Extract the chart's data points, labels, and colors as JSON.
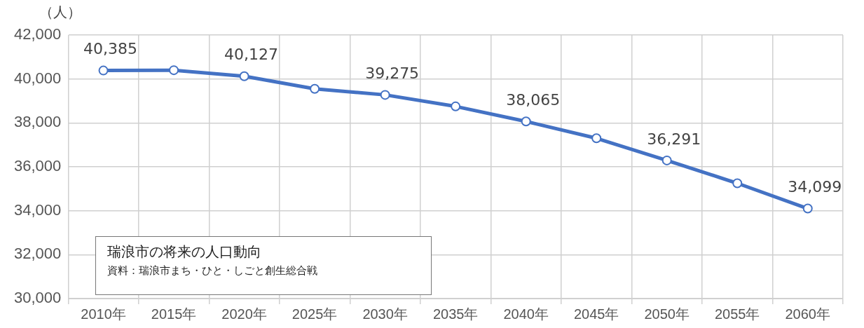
{
  "chart_data": {
    "type": "line",
    "title": "瑞浪市の将来の人口動向",
    "ylabel": "（人）",
    "annotations": [
      "資料：瑞浪市まち・ひと・しごと創生総合戦"
    ],
    "categories": [
      "2010年",
      "2015年",
      "2020年",
      "2025年",
      "2030年",
      "2035年",
      "2040年",
      "2045年",
      "2050年",
      "2055年",
      "2060年"
    ],
    "series": [
      {
        "color": "#4472c4",
        "values": [
          40385,
          40400,
          40127,
          39550,
          39275,
          38750,
          38065,
          37300,
          36291,
          35250,
          34099
        ],
        "value_labels": [
          "40,385",
          null,
          "40,127",
          null,
          "39,275",
          null,
          "38,065",
          null,
          "36,291",
          null,
          "34,099"
        ]
      }
    ],
    "ylim": [
      30000,
      42000
    ],
    "yticks": [
      {
        "value": 30000,
        "label": "30,000"
      },
      {
        "value": 32000,
        "label": "32,000"
      },
      {
        "value": 34000,
        "label": "34,000"
      },
      {
        "value": 36000,
        "label": "36,000"
      },
      {
        "value": 38000,
        "label": "38,000"
      },
      {
        "value": 40000,
        "label": "40,000"
      },
      {
        "value": 42000,
        "label": "42,000"
      }
    ],
    "grid": true,
    "legend": false,
    "marker": "circle",
    "line_style": "solid"
  }
}
